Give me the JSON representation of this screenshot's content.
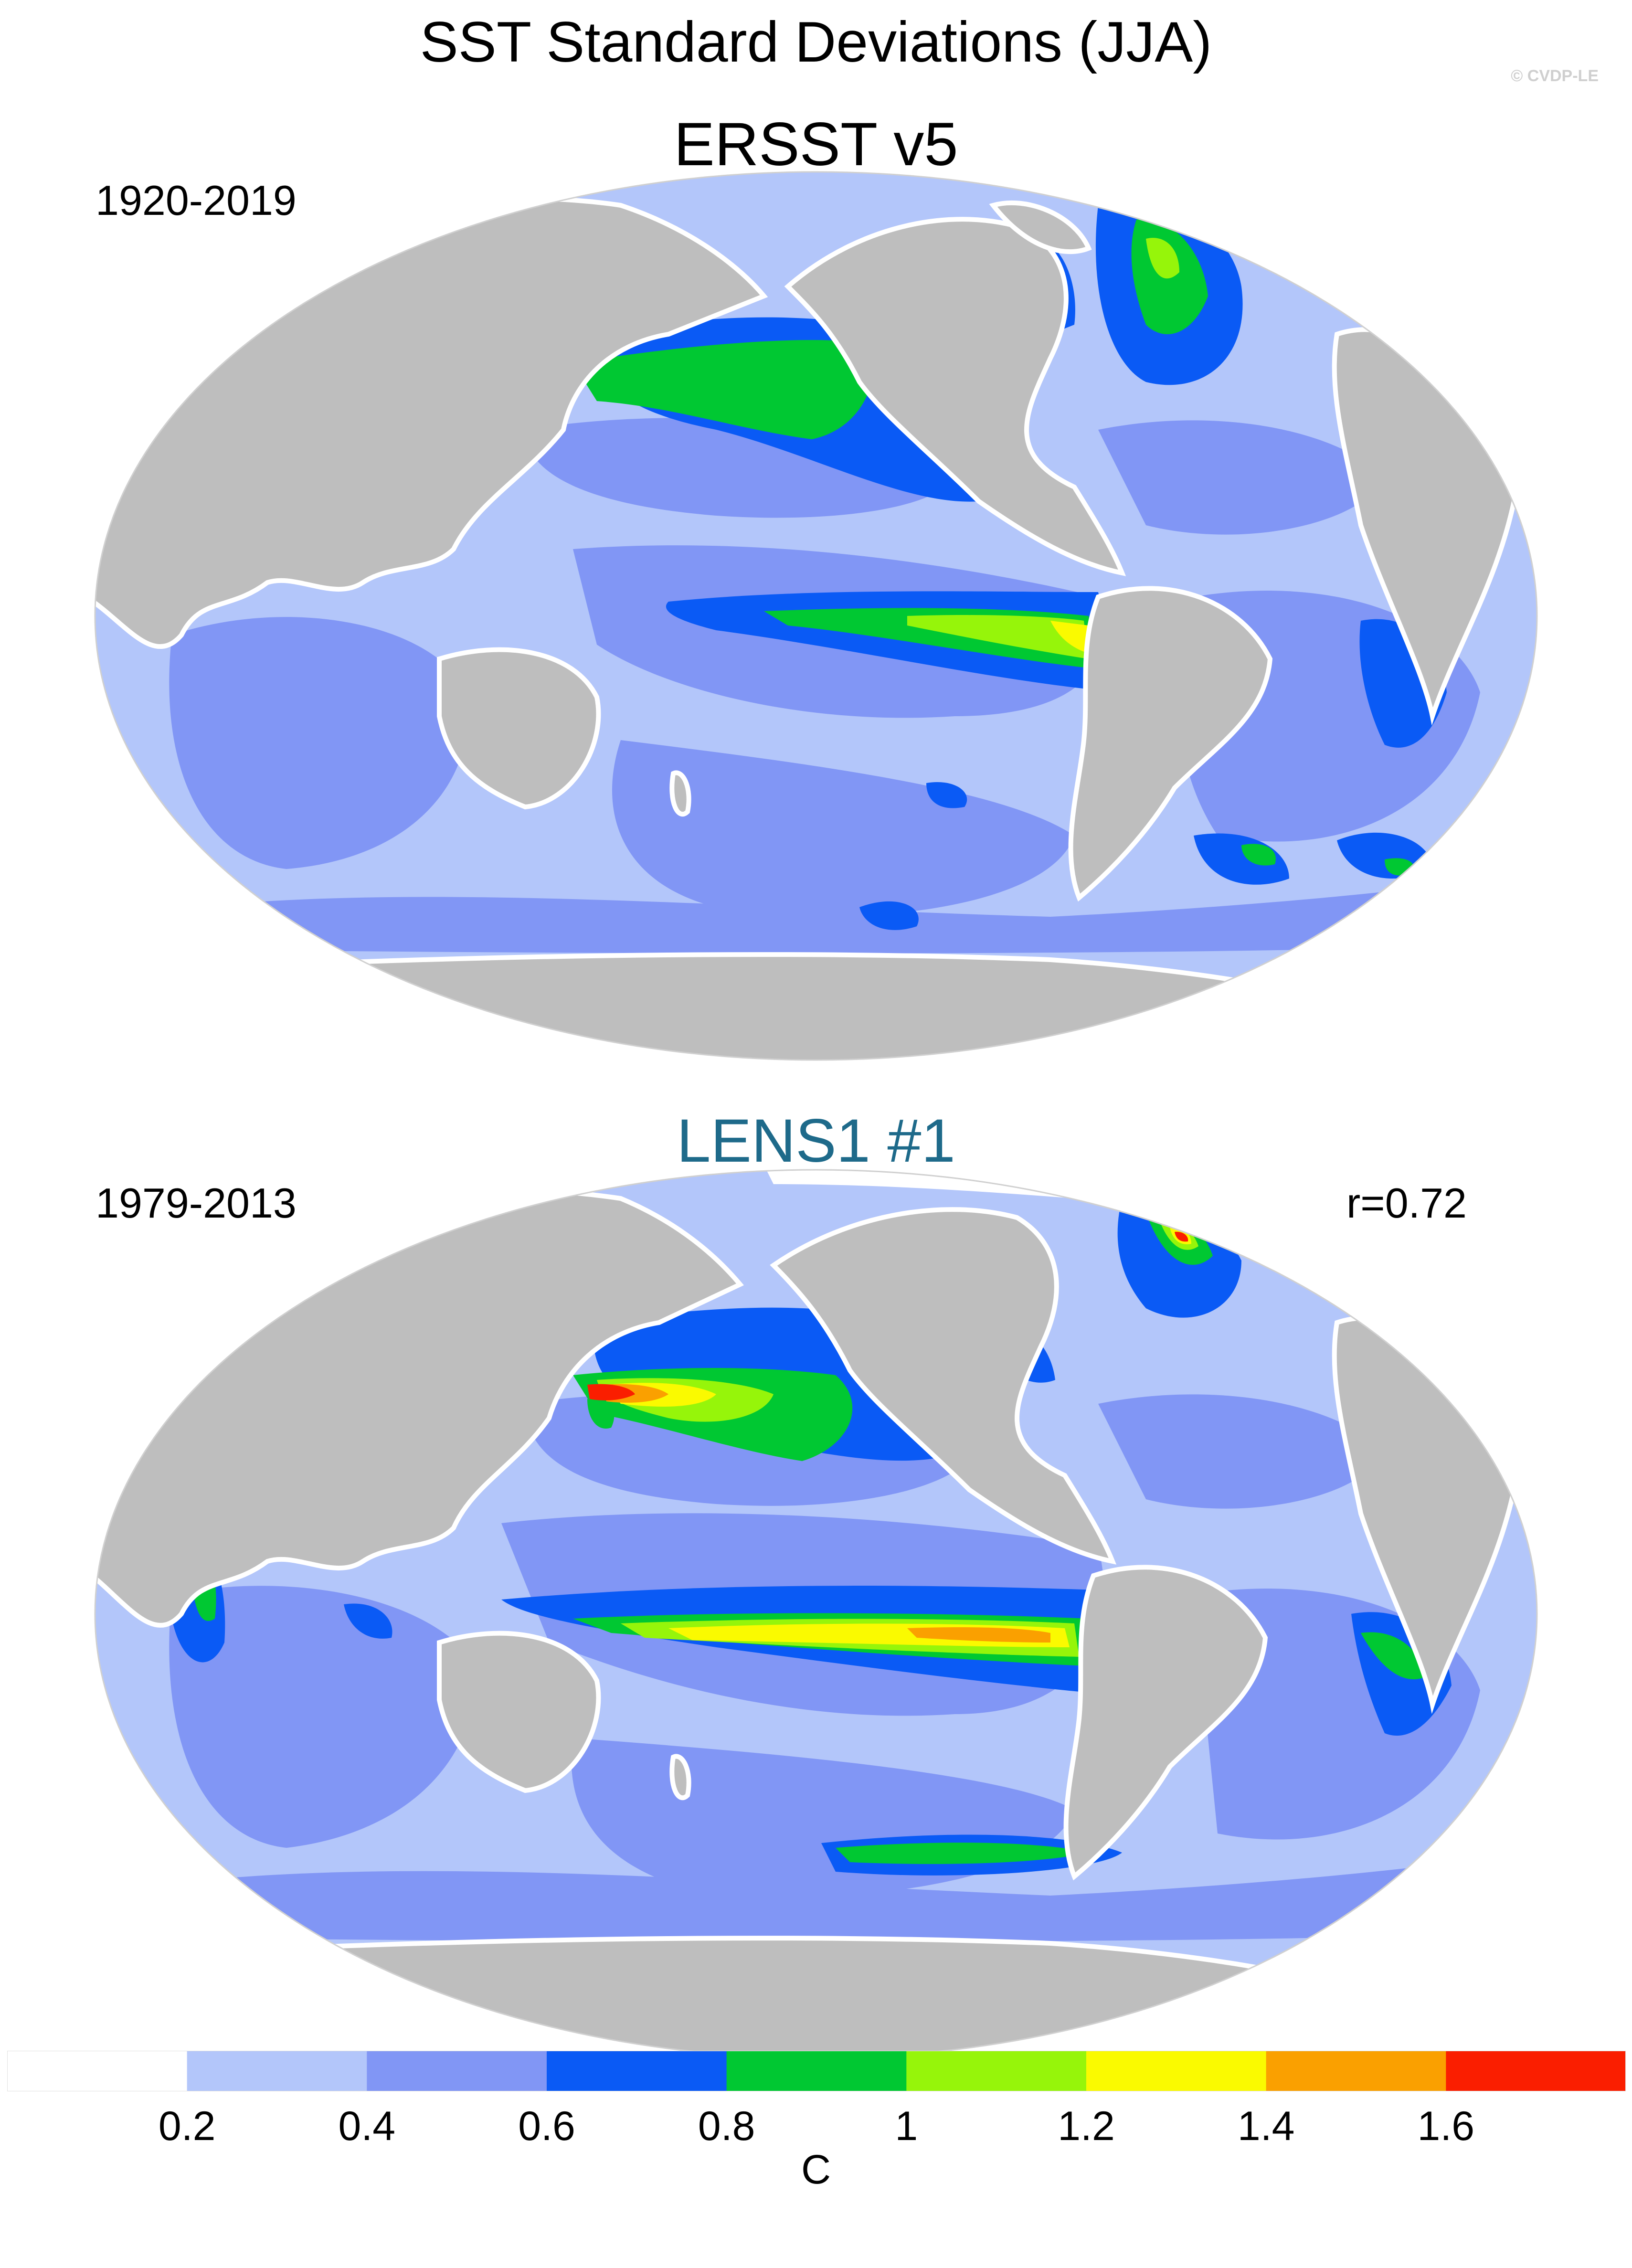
{
  "figure": {
    "title": "SST Standard Deviations (JJA)",
    "copyright": "© CVDP-LE"
  },
  "panels": [
    {
      "title": "ERSST v5",
      "period": "1920-2019",
      "correlation": ""
    },
    {
      "title": "LENS1 #1",
      "period": "1979-2013",
      "correlation": "r=0.72"
    }
  ],
  "colors": {
    "land": "#bebebe",
    "ocean_background": "#b3c6fa",
    "title_bottom": "#1e6a8a",
    "levels": [
      "#ffffff",
      "#b3c6fa",
      "#8196f5",
      "#0a5af5",
      "#00c832",
      "#96f50a",
      "#fafa00",
      "#faa000",
      "#fa1e00"
    ]
  },
  "colorbar": {
    "unit": "C",
    "boundaries": [
      "0.2",
      "0.4",
      "0.6",
      "0.8",
      "1",
      "1.2",
      "1.4",
      "1.6"
    ]
  }
}
